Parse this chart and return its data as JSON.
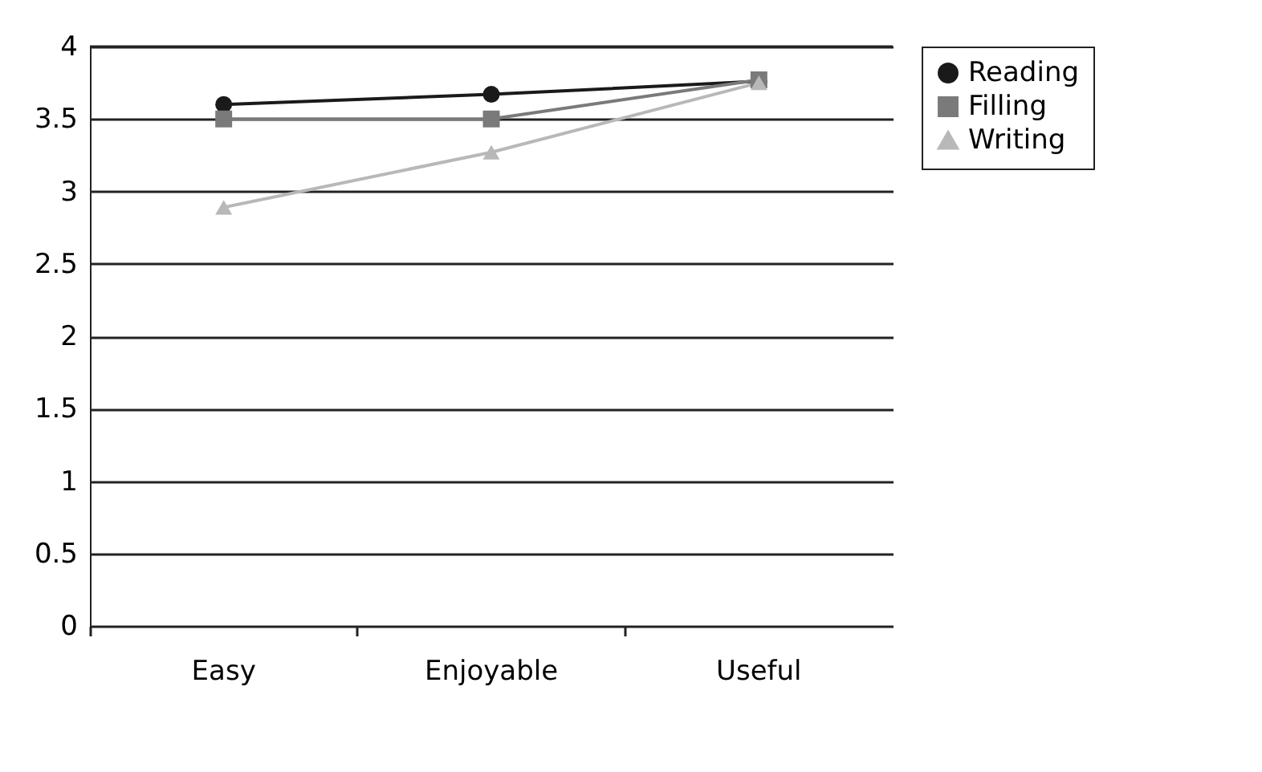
{
  "chart_data": {
    "type": "line",
    "categories": [
      "Easy",
      "Enjoyable",
      "Useful"
    ],
    "series": [
      {
        "name": "Reading",
        "color": "#1a1a1a",
        "marker": "circle",
        "values": [
          3.6,
          3.67,
          3.76
        ]
      },
      {
        "name": "Filling",
        "color": "#7a7a7a",
        "marker": "square",
        "values": [
          3.5,
          3.5,
          3.77
        ]
      },
      {
        "name": "Writing",
        "color": "#b8b8b8",
        "marker": "triangle",
        "values": [
          2.89,
          3.27,
          3.75
        ]
      }
    ],
    "ylim": [
      0,
      4
    ],
    "yticks": [
      0,
      0.5,
      1,
      1.5,
      2,
      2.5,
      3,
      3.5,
      4
    ],
    "grid": "y",
    "legend": "right",
    "line_style": "solid"
  }
}
